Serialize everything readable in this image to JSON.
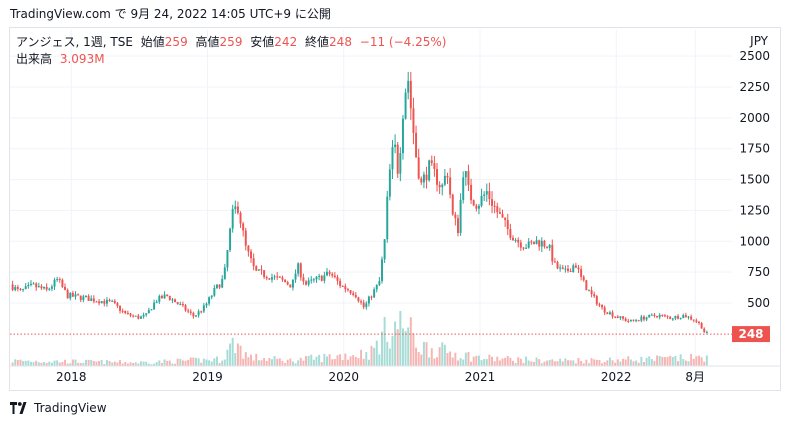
{
  "header": {
    "text": "TradingView.com で 9月 24, 2022 14:05 UTC+9 に公開"
  },
  "legend": {
    "symbol": "アンジェス, 1週, TSE",
    "open_label": "始値",
    "open": "259",
    "high_label": "高値",
    "high": "259",
    "low_label": "安値",
    "low": "242",
    "close_label": "終値",
    "close": "248",
    "change": "−11 (−4.25%)",
    "volume_label": "出来高",
    "volume": "3.093M"
  },
  "footer": {
    "brand": "TradingView"
  },
  "colors": {
    "up": "#26a69a",
    "down": "#ef5350",
    "up_volume": "#a7dcd6",
    "down_volume": "#f6b5b3",
    "grid": "#f0f3fa"
  },
  "chart_data": {
    "type": "candlestick",
    "currency": "JPY",
    "ylim": [
      200,
      2550
    ],
    "y_ticks": [
      500,
      750,
      1000,
      1250,
      1500,
      1750,
      2000,
      2250,
      2500
    ],
    "x_range": [
      2017.55,
      2022.85
    ],
    "x_ticks": [
      {
        "label": "2018",
        "x": 2018.0
      },
      {
        "label": "2019",
        "x": 2019.0
      },
      {
        "label": "2020",
        "x": 2020.0
      },
      {
        "label": "2021",
        "x": 2021.0
      },
      {
        "label": "2022",
        "x": 2022.0
      },
      {
        "label": "8月",
        "x": 2022.58
      }
    ],
    "last_price": 248,
    "close_anchors": [
      [
        2017.55,
        650
      ],
      [
        2017.62,
        590
      ],
      [
        2017.72,
        640
      ],
      [
        2017.82,
        600
      ],
      [
        2017.9,
        690
      ],
      [
        2017.97,
        560
      ],
      [
        2018.1,
        540
      ],
      [
        2018.2,
        520
      ],
      [
        2018.3,
        500
      ],
      [
        2018.4,
        410
      ],
      [
        2018.5,
        380
      ],
      [
        2018.55,
        400
      ],
      [
        2018.62,
        520
      ],
      [
        2018.7,
        560
      ],
      [
        2018.8,
        480
      ],
      [
        2018.9,
        390
      ],
      [
        2018.98,
        470
      ],
      [
        2019.05,
        600
      ],
      [
        2019.12,
        700
      ],
      [
        2019.18,
        1200
      ],
      [
        2019.22,
        1300
      ],
      [
        2019.28,
        950
      ],
      [
        2019.35,
        750
      ],
      [
        2019.45,
        720
      ],
      [
        2019.55,
        680
      ],
      [
        2019.62,
        640
      ],
      [
        2019.66,
        800
      ],
      [
        2019.72,
        650
      ],
      [
        2019.82,
        700
      ],
      [
        2019.9,
        740
      ],
      [
        2019.98,
        640
      ],
      [
        2020.08,
        580
      ],
      [
        2020.15,
        460
      ],
      [
        2020.2,
        560
      ],
      [
        2020.26,
        660
      ],
      [
        2020.3,
        1000
      ],
      [
        2020.33,
        1500
      ],
      [
        2020.37,
        1800
      ],
      [
        2020.4,
        1560
      ],
      [
        2020.44,
        2150
      ],
      [
        2020.47,
        2350
      ],
      [
        2020.5,
        2000
      ],
      [
        2020.53,
        1700
      ],
      [
        2020.57,
        1450
      ],
      [
        2020.62,
        1600
      ],
      [
        2020.68,
        1520
      ],
      [
        2020.72,
        1430
      ],
      [
        2020.76,
        1580
      ],
      [
        2020.8,
        1200
      ],
      [
        2020.84,
        1100
      ],
      [
        2020.88,
        1620
      ],
      [
        2020.92,
        1380
      ],
      [
        2020.98,
        1300
      ],
      [
        2021.05,
        1400
      ],
      [
        2021.12,
        1250
      ],
      [
        2021.2,
        1100
      ],
      [
        2021.28,
        1000
      ],
      [
        2021.35,
        960
      ],
      [
        2021.42,
        1000
      ],
      [
        2021.5,
        970
      ],
      [
        2021.55,
        800
      ],
      [
        2021.62,
        740
      ],
      [
        2021.7,
        820
      ],
      [
        2021.75,
        680
      ],
      [
        2021.82,
        560
      ],
      [
        2021.9,
        450
      ],
      [
        2022.0,
        390
      ],
      [
        2022.1,
        350
      ],
      [
        2022.2,
        380
      ],
      [
        2022.3,
        400
      ],
      [
        2022.4,
        380
      ],
      [
        2022.5,
        400
      ],
      [
        2022.58,
        360
      ],
      [
        2022.62,
        320
      ],
      [
        2022.65,
        260
      ],
      [
        2022.68,
        248
      ]
    ],
    "volume_zones": [
      [
        2017.55,
        0.12
      ],
      [
        2018.5,
        0.08
      ],
      [
        2019.1,
        0.15
      ],
      [
        2019.2,
        0.55
      ],
      [
        2019.3,
        0.2
      ],
      [
        2019.6,
        0.12
      ],
      [
        2020.2,
        0.3
      ],
      [
        2020.33,
        0.85
      ],
      [
        2020.45,
        0.95
      ],
      [
        2020.55,
        0.45
      ],
      [
        2020.8,
        0.3
      ],
      [
        2021.0,
        0.18
      ],
      [
        2021.5,
        0.12
      ],
      [
        2022.0,
        0.14
      ],
      [
        2022.6,
        0.18
      ],
      [
        2022.68,
        0.25
      ]
    ]
  }
}
